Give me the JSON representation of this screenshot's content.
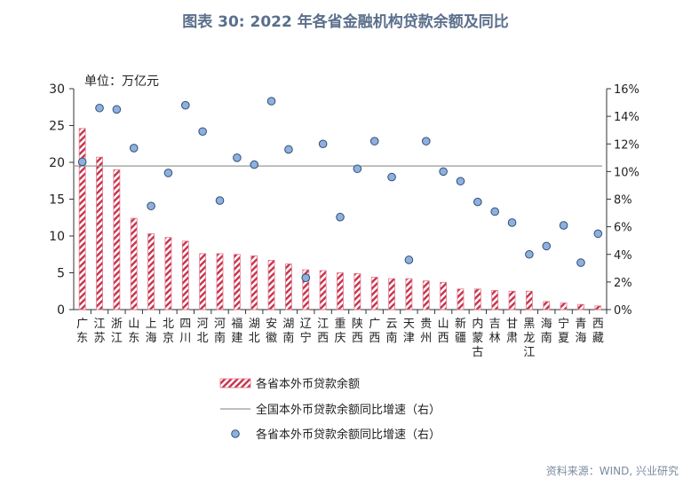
{
  "title": "图表 30: 2022 年各省金融机构贷款余额及同比",
  "source": "资料来源：WIND, 兴业研究",
  "chart_data": {
    "type": "bar",
    "unit_label": "单位：万亿元",
    "categories": [
      "广东",
      "江苏",
      "浙江",
      "山东",
      "上海",
      "北京",
      "四川",
      "河北",
      "河南",
      "福建",
      "湖北",
      "安徽",
      "湖南",
      "辽宁",
      "江西",
      "重庆",
      "陕西",
      "广西",
      "云南",
      "天津",
      "贵州",
      "山西",
      "新疆",
      "内蒙古",
      "吉林",
      "甘肃",
      "黑龙江",
      "海南",
      "宁夏",
      "青海",
      "西藏"
    ],
    "series": [
      {
        "name": "各省本外币贷款余额",
        "type": "bar",
        "axis": "left",
        "color": "#c8304a",
        "values": [
          24.6,
          20.7,
          19.0,
          12.4,
          10.3,
          9.8,
          9.3,
          7.6,
          7.6,
          7.5,
          7.3,
          6.7,
          6.2,
          5.4,
          5.3,
          5.0,
          4.9,
          4.4,
          4.2,
          4.2,
          3.9,
          3.7,
          2.8,
          2.8,
          2.6,
          2.5,
          2.5,
          1.1,
          0.9,
          0.7,
          0.5
        ]
      },
      {
        "name": "全国本外币贷款余额同比增速（右）",
        "type": "line",
        "axis": "right",
        "color": "#999999",
        "value": 10.4
      },
      {
        "name": "各省本外币贷款余额同比增速（右）",
        "type": "scatter",
        "axis": "right",
        "color": "#8fb0dc",
        "values": [
          10.7,
          14.6,
          14.5,
          11.7,
          7.5,
          9.9,
          14.8,
          12.9,
          7.9,
          11.0,
          10.5,
          15.1,
          11.6,
          2.3,
          12.0,
          6.7,
          10.2,
          12.2,
          9.6,
          3.6,
          12.2,
          10.0,
          9.3,
          7.8,
          7.1,
          6.3,
          4.0,
          4.6,
          6.1,
          3.4,
          5.5
        ]
      }
    ],
    "ylim_left": [
      0,
      30
    ],
    "yticks_left": [
      "0",
      "5",
      "10",
      "15",
      "20",
      "25",
      "30"
    ],
    "ylim_right": [
      0,
      16
    ],
    "yticks_right": [
      "0%",
      "2%",
      "4%",
      "6%",
      "8%",
      "10%",
      "12%",
      "14%",
      "16%"
    ],
    "grid": false,
    "legend": "bottom"
  }
}
